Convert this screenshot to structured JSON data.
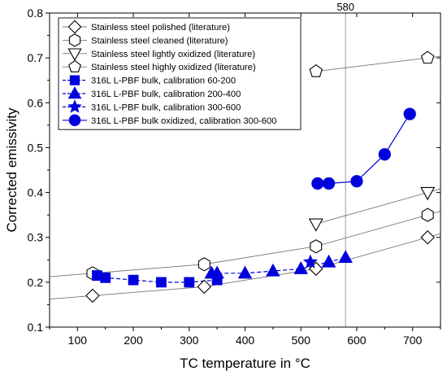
{
  "chart_data": {
    "type": "scatter",
    "xlabel": "TC temperature in °C",
    "ylabel": "Corrected emissivity",
    "xlim": [
      50,
      750
    ],
    "ylim": [
      0.1,
      0.8
    ],
    "x_ticks": [
      100,
      200,
      300,
      400,
      500,
      600,
      700
    ],
    "y_ticks": [
      0.1,
      0.2,
      0.3,
      0.4,
      0.5,
      0.6,
      0.7,
      0.8
    ],
    "grid": false,
    "legend_position": "top-left",
    "annotation": {
      "label": "580",
      "x": 580,
      "type": "vertical-line"
    },
    "series": [
      {
        "name": "Stainless steel polished (literature)",
        "marker": "diamond",
        "filled": false,
        "color": "#000000",
        "line_color": "#777777",
        "line_start_x": 50,
        "line_end_x": 750,
        "x": [
          127,
          327,
          527,
          727
        ],
        "y": [
          0.17,
          0.19,
          0.23,
          0.3
        ]
      },
      {
        "name": "Stainless steel cleaned (literature)",
        "marker": "hexagon",
        "filled": false,
        "color": "#000000",
        "line_color": "#777777",
        "line_start_x": 50,
        "line_end_x": 750,
        "x": [
          127,
          327,
          527,
          727
        ],
        "y": [
          0.22,
          0.24,
          0.28,
          0.35
        ]
      },
      {
        "name": "Stainless steel lightly oxidized (literature)",
        "marker": "triangle-down",
        "filled": false,
        "color": "#000000",
        "line_color": "#777777",
        "line_start_x": null,
        "line_end_x": 750,
        "x": [
          527,
          727
        ],
        "y": [
          0.33,
          0.4
        ]
      },
      {
        "name": "Stainless steel highly oxidized (literature)",
        "marker": "pentagon",
        "filled": false,
        "color": "#000000",
        "line_color": "#777777",
        "line_start_x": null,
        "line_end_x": 750,
        "x": [
          527,
          727
        ],
        "y": [
          0.67,
          0.7
        ]
      },
      {
        "name": "316L L-PBF bulk, calibration 60-200",
        "marker": "square",
        "filled": true,
        "color": "#0000dd",
        "line_color": "#0000dd",
        "dashed": true,
        "x": [
          135,
          150,
          200,
          250,
          300,
          350
        ],
        "y": [
          0.215,
          0.21,
          0.205,
          0.2,
          0.2,
          0.205
        ]
      },
      {
        "name": "316L L-PBF bulk, calibration 200-400",
        "marker": "triangle-up",
        "filled": true,
        "color": "#0000dd",
        "line_color": "#0000dd",
        "dashed": true,
        "x": [
          340,
          350,
          400,
          450,
          500,
          550,
          580
        ],
        "y": [
          0.22,
          0.22,
          0.22,
          0.225,
          0.23,
          0.245,
          0.255
        ]
      },
      {
        "name": "316L L-PBF bulk, calibration 300-600",
        "marker": "star",
        "filled": true,
        "color": "#0000dd",
        "line_color": "#0000dd",
        "dashed": true,
        "x": [
          517
        ],
        "y": [
          0.245
        ]
      },
      {
        "name": "316L L-PBF bulk oxidized, calibration 300-600",
        "marker": "circle",
        "filled": true,
        "color": "#0000dd",
        "line_color": "#0000dd",
        "dashed": false,
        "x": [
          530,
          550,
          600,
          650,
          695
        ],
        "y": [
          0.42,
          0.42,
          0.425,
          0.485,
          0.575
        ]
      }
    ]
  }
}
